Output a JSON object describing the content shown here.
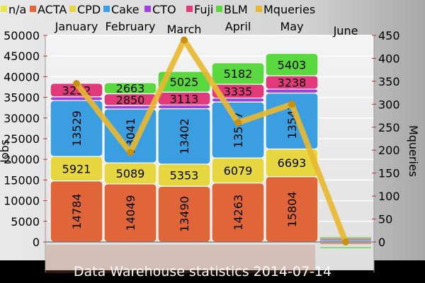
{
  "legend": [
    {
      "name": "n/a",
      "color": "#e8e84a"
    },
    {
      "name": "ACTA",
      "color": "#e0663a"
    },
    {
      "name": "CPD",
      "color": "#e6d640"
    },
    {
      "name": "Cake",
      "color": "#3a9ee0"
    },
    {
      "name": "CTO",
      "color": "#a040e0"
    },
    {
      "name": "Fuji",
      "color": "#e03a7a"
    },
    {
      "name": "BLM",
      "color": "#5ad840"
    },
    {
      "name": "Mqueries",
      "color": "#e8b830"
    }
  ],
  "chart_data": {
    "type": "bar",
    "title": "Data Warehouse statistics 2014-07-14",
    "categories": [
      "January",
      "February",
      "March",
      "April",
      "May",
      "June"
    ],
    "ylabel": "Jobs",
    "y2label": "Mqueries",
    "ylim": [
      -2000,
      50000
    ],
    "y2lim": [
      -20,
      450
    ],
    "yticks": [
      0,
      5000,
      10000,
      15000,
      20000,
      25000,
      30000,
      35000,
      40000,
      45000,
      50000
    ],
    "y2ticks": [
      0,
      50,
      100,
      150,
      200,
      250,
      300,
      350,
      400,
      450
    ],
    "series": [
      {
        "name": "ACTA",
        "color": "#e0663a",
        "values": [
          14784,
          14049,
          13490,
          14263,
          15804,
          0
        ]
      },
      {
        "name": "CPD",
        "color": "#e6d640",
        "values": [
          5921,
          5089,
          5353,
          6079,
          6693,
          0
        ]
      },
      {
        "name": "Cake",
        "color": "#3a9ee0",
        "values": [
          13529,
          13041,
          13402,
          13547,
          13547,
          0
        ]
      },
      {
        "name": "CTO",
        "color": "#a040e0",
        "values": [
          900,
          850,
          900,
          950,
          950,
          0
        ]
      },
      {
        "name": "Fuji",
        "color": "#e03a7a",
        "values": [
          3252,
          2850,
          3113,
          3335,
          3238,
          0
        ]
      },
      {
        "name": "BLM",
        "color": "#5ad840",
        "values": [
          0,
          2663,
          5025,
          5182,
          5403,
          0
        ]
      }
    ],
    "labeled": {
      "ACTA": [
        true,
        true,
        true,
        true,
        true,
        false
      ],
      "CPD": [
        true,
        true,
        true,
        true,
        true,
        false
      ],
      "Cake": [
        true,
        true,
        true,
        true,
        true,
        false
      ],
      "CTO": [
        false,
        false,
        false,
        false,
        false,
        false
      ],
      "Fuji": [
        true,
        true,
        true,
        true,
        true,
        false
      ],
      "BLM": [
        false,
        true,
        true,
        true,
        true,
        false
      ]
    },
    "line": {
      "name": "Mqueries",
      "color": "#e8b830",
      "values": [
        345,
        195,
        440,
        260,
        300,
        0
      ]
    }
  }
}
